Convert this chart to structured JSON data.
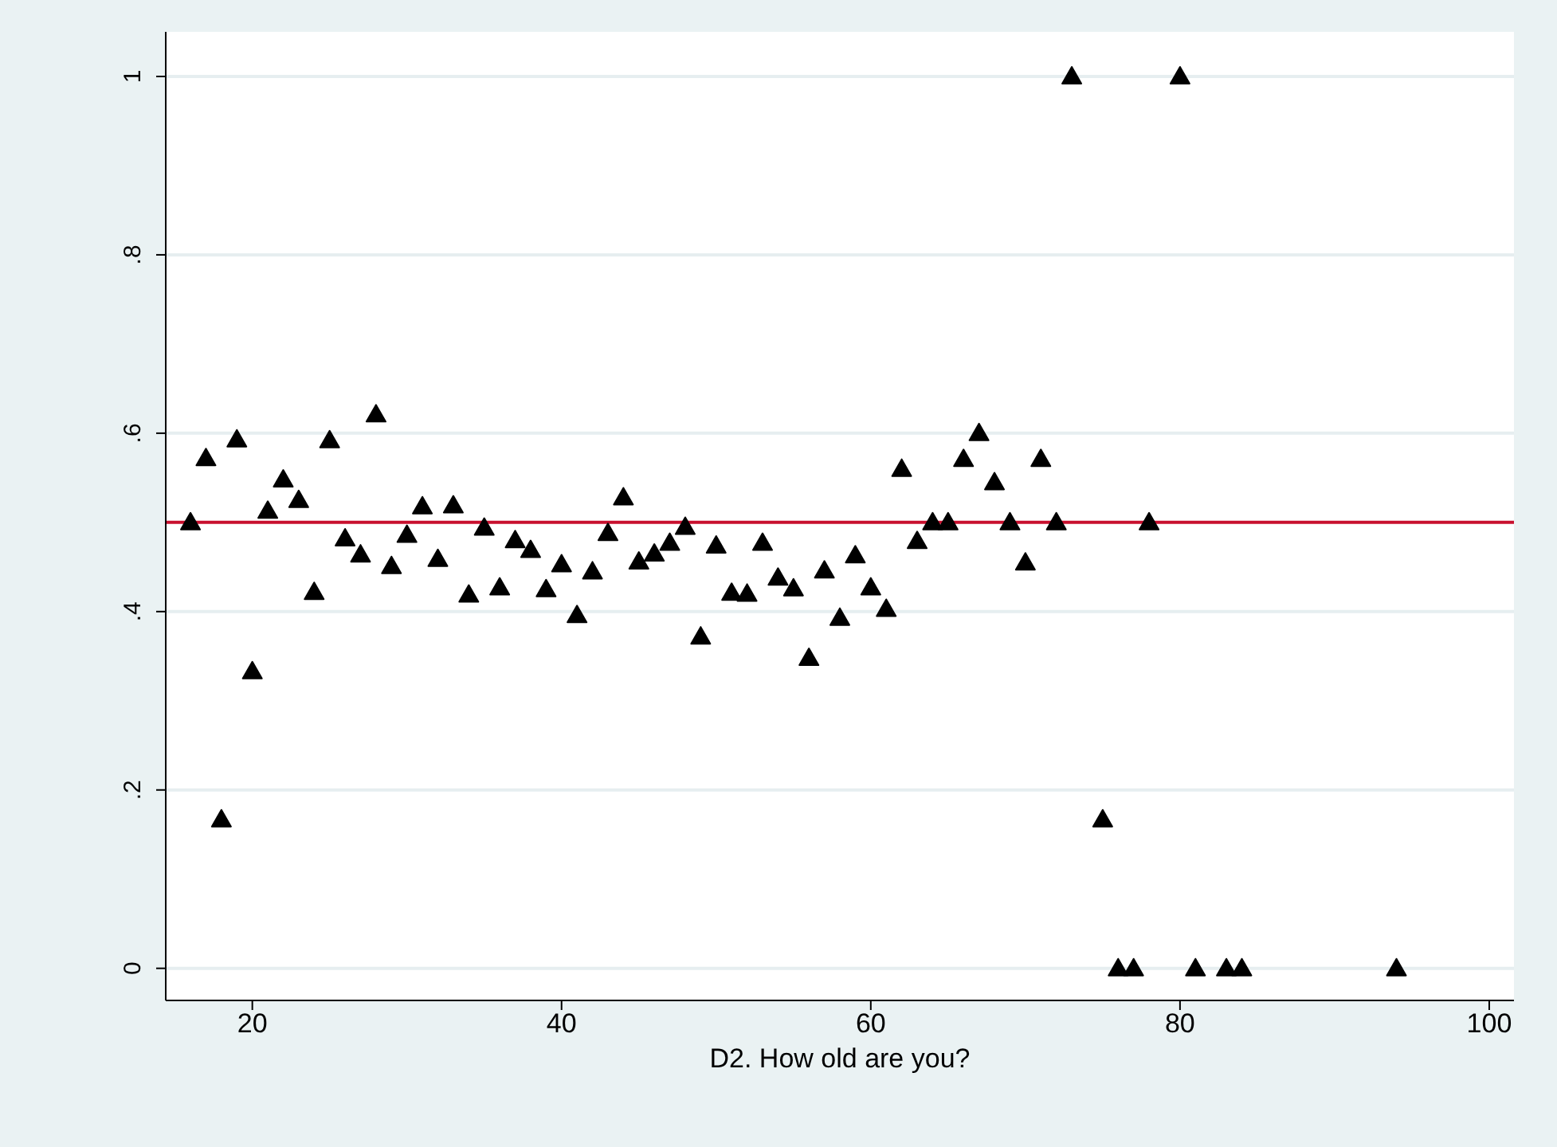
{
  "chart_data": {
    "type": "scatter",
    "xlabel": "D2. How old are you?",
    "x": [
      16,
      17,
      18,
      19,
      20,
      21,
      22,
      23,
      24,
      25,
      26,
      27,
      28,
      29,
      30,
      31,
      32,
      33,
      34,
      35,
      36,
      37,
      38,
      39,
      40,
      41,
      42,
      43,
      44,
      45,
      46,
      47,
      48,
      49,
      50,
      51,
      52,
      53,
      54,
      55,
      56,
      57,
      58,
      59,
      60,
      61,
      62,
      63,
      64,
      65,
      66,
      67,
      68,
      69,
      70,
      71,
      72,
      73,
      75,
      76,
      77,
      78,
      80,
      81,
      83,
      84,
      94
    ],
    "series": [
      {
        "color": "#000000",
        "values": [
          0.5,
          0.572,
          0.167,
          0.593,
          0.333,
          0.513,
          0.548,
          0.525,
          0.422,
          0.592,
          0.482,
          0.464,
          0.621,
          0.451,
          0.486,
          0.518,
          0.459,
          0.519,
          0.419,
          0.494,
          0.427,
          0.48,
          0.469,
          0.425,
          0.453,
          0.396,
          0.445,
          0.488,
          0.528,
          0.456,
          0.465,
          0.477,
          0.495,
          0.372,
          0.474,
          0.421,
          0.42,
          0.477,
          0.438,
          0.426,
          0.348,
          0.446,
          0.393,
          0.463,
          0.427,
          0.403,
          0.56,
          0.479,
          0.5,
          0.5,
          0.571,
          0.6,
          0.545,
          0.5,
          0.455,
          0.571,
          0.5,
          1,
          0.167,
          0,
          0,
          0.5,
          1,
          0,
          0,
          0,
          0
        ]
      }
    ],
    "xlim": [
      14.4,
      101.6
    ],
    "xticks": [
      20,
      40,
      60,
      80,
      100
    ],
    "ylim": [
      -0.036,
      1.05
    ],
    "yticks": [
      0,
      {
        "value": 0.2,
        "label": ".2"
      },
      {
        "value": 0.4,
        "label": ".4"
      },
      {
        "value": 0.6,
        "label": ".6"
      },
      {
        "value": 0.8,
        "label": ".8"
      },
      1
    ],
    "ref_lines": [
      {
        "axis": "y",
        "value": 0.5,
        "color": "#c8102e"
      }
    ],
    "grid": "y",
    "marker": "triangle"
  }
}
